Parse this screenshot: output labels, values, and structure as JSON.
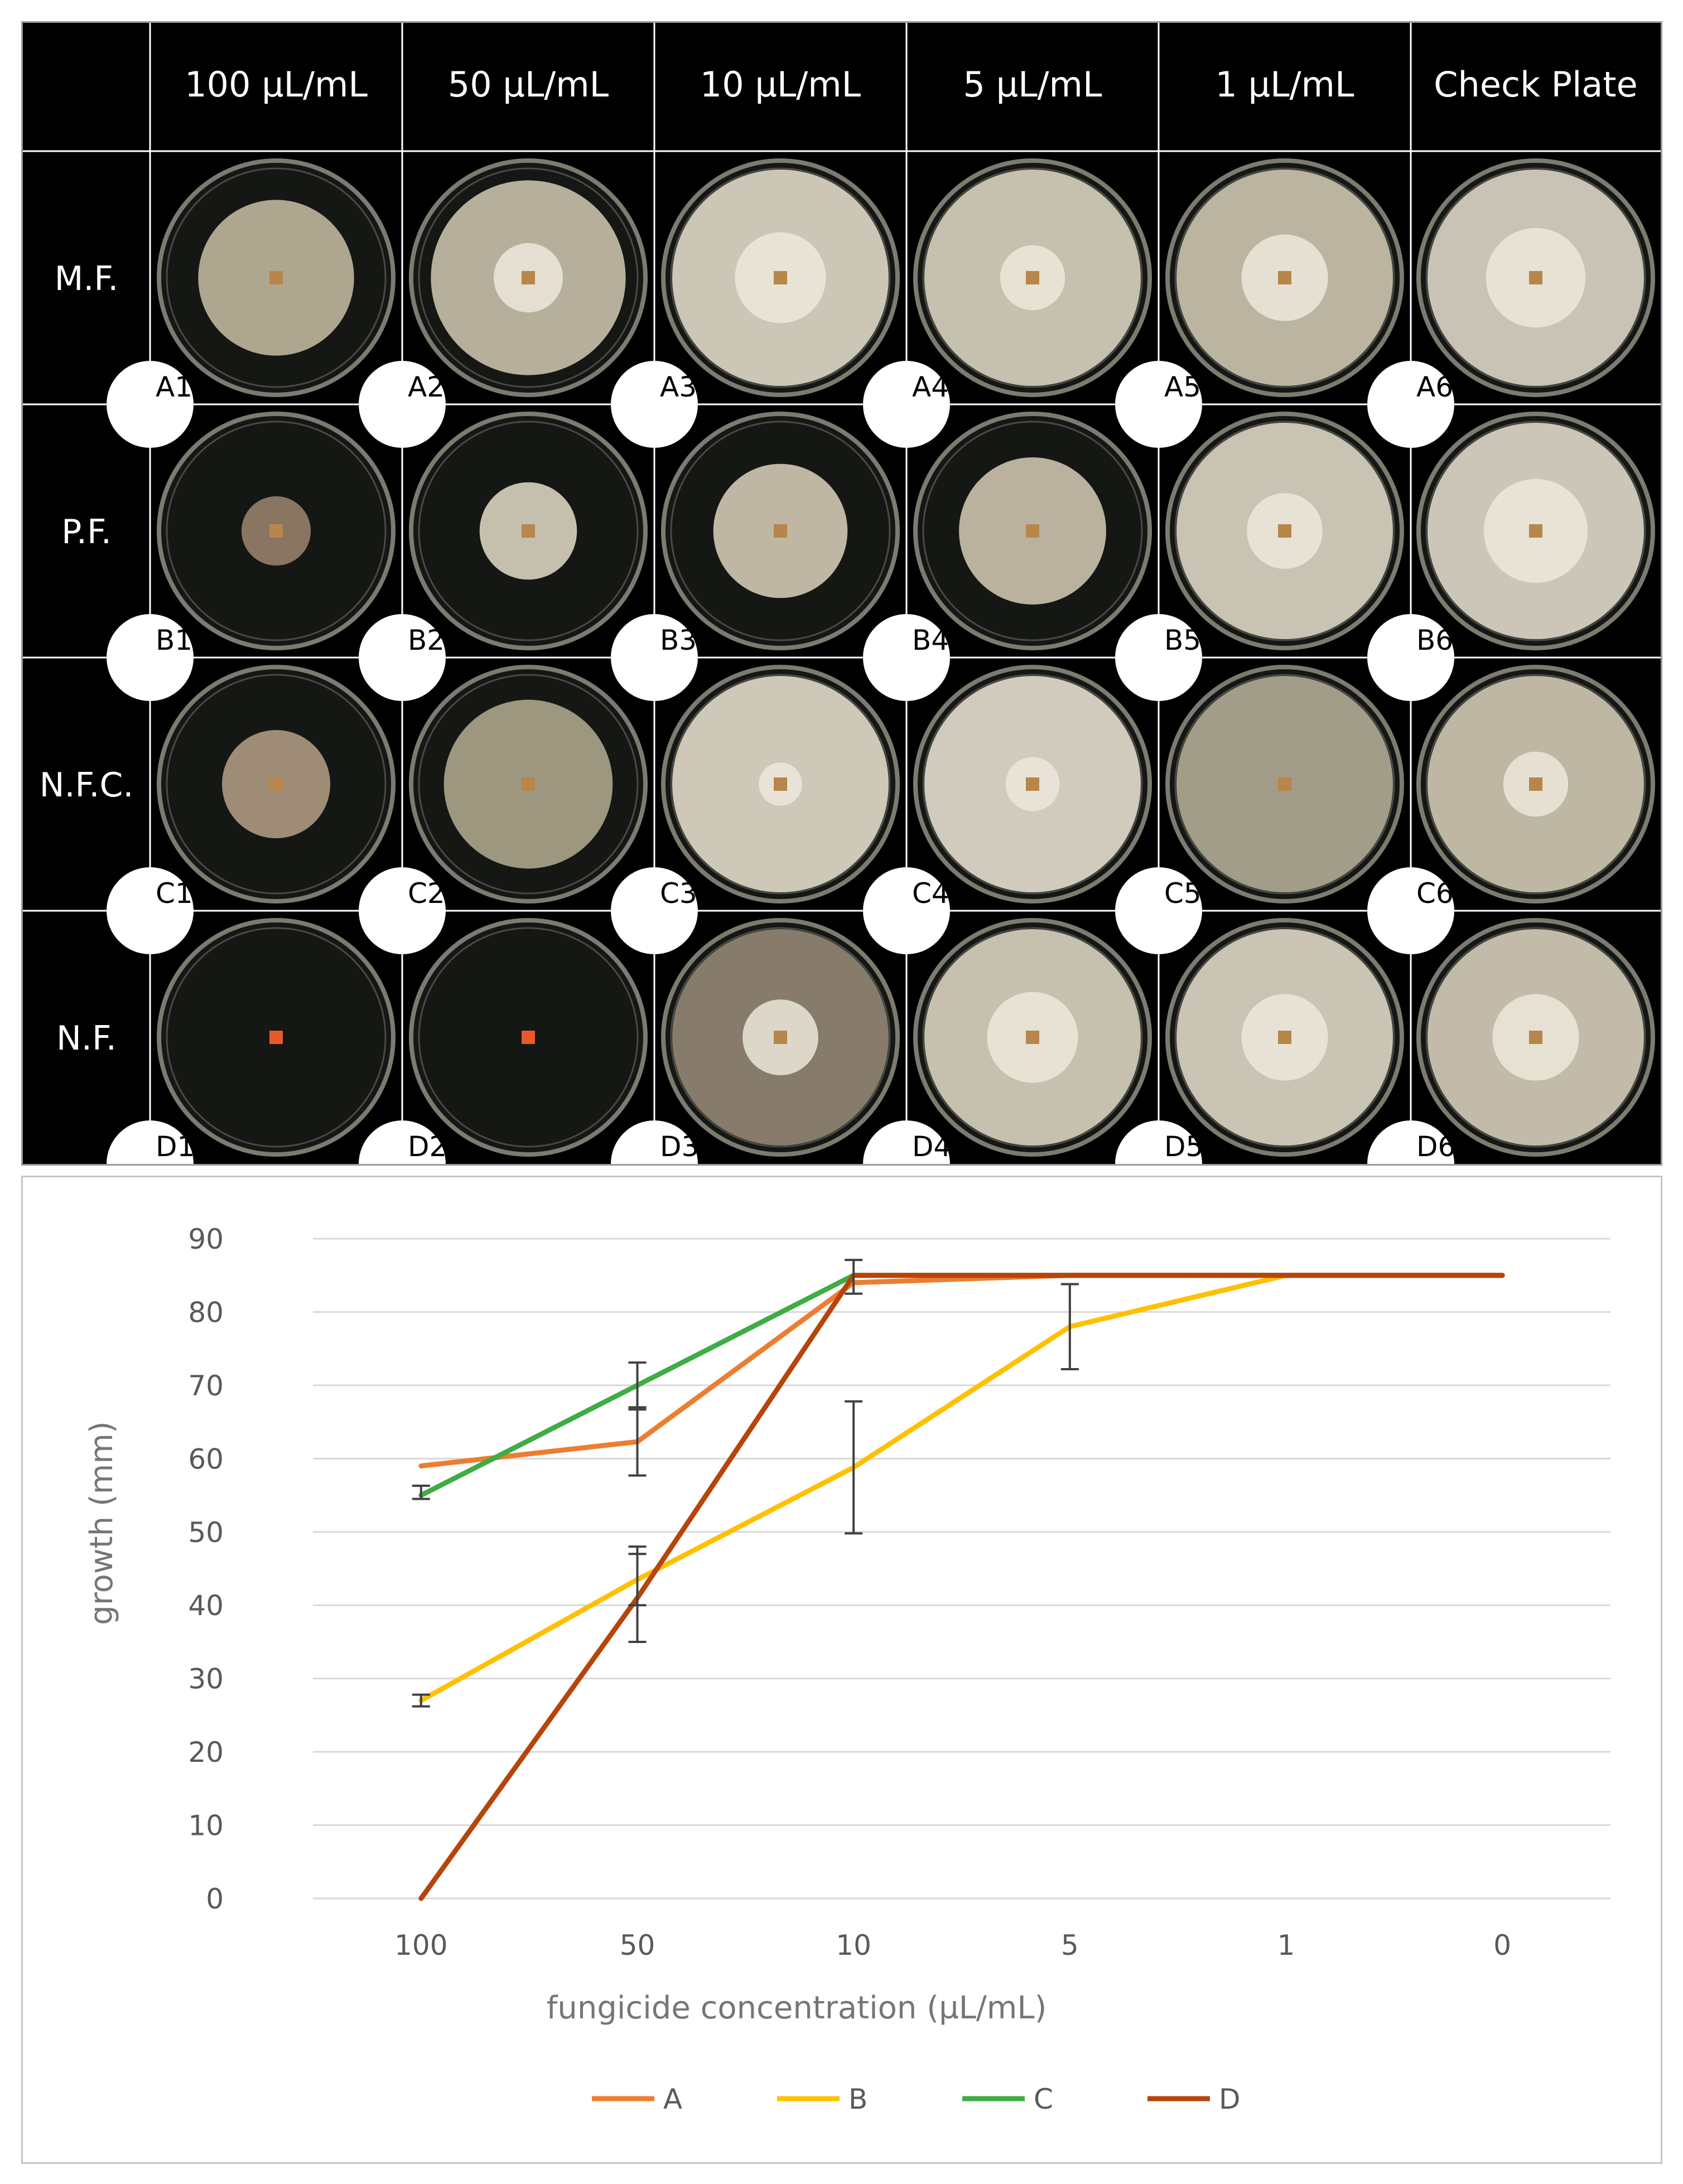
{
  "grid": {
    "columns": [
      "100 µL/mL",
      "50 µL/mL",
      "10 µL/mL",
      "5 µL/mL",
      "1 µL/mL",
      "Check Plate"
    ],
    "rows": [
      {
        "label": "M.F.",
        "plates": [
          "A1",
          "A2",
          "A3",
          "A4",
          "A5",
          "A6"
        ],
        "colony": [
          0.72,
          0.9,
          1.0,
          1.0,
          1.0,
          1.0
        ],
        "center": [
          0.0,
          0.32,
          0.42,
          0.3,
          0.4,
          0.46
        ],
        "tone": [
          "#b7ae97",
          "#bfb7a2",
          "#d6d0c0",
          "#d0c9b6",
          "#c4bda8",
          "#d2ccbd"
        ]
      },
      {
        "label": "P.F.",
        "plates": [
          "B1",
          "B2",
          "B3",
          "B4",
          "B5",
          "B6"
        ],
        "colony": [
          0.32,
          0.45,
          0.62,
          0.68,
          1.0,
          1.0
        ],
        "center": [
          0.0,
          0.0,
          0.0,
          0.0,
          0.35,
          0.48
        ],
        "tone": [
          "#8f7a66",
          "#cfc8b6",
          "#c8c0ab",
          "#c3bba5",
          "#d2ccbb",
          "#d6d0c2"
        ]
      },
      {
        "label": "N.F.C.",
        "plates": [
          "C1",
          "C2",
          "C3",
          "C4",
          "C5",
          "C6"
        ],
        "colony": [
          0.5,
          0.78,
          1.0,
          1.0,
          1.0,
          1.0
        ],
        "center": [
          0.0,
          0.0,
          0.2,
          0.25,
          0.0,
          0.3
        ],
        "tone": [
          "#a5927c",
          "#a49e86",
          "#d8d2c2",
          "#dbd5c6",
          "#a9a48f",
          "#c6c0ab"
        ]
      },
      {
        "label": "N.F.",
        "plates": [
          "D1",
          "D2",
          "D3",
          "D4",
          "D5",
          "D6"
        ],
        "colony": [
          0.0,
          0.0,
          1.0,
          1.0,
          1.0,
          1.0
        ],
        "center": [
          0.0,
          0.0,
          0.35,
          0.42,
          0.4,
          0.4
        ],
        "tone": [
          "#1e241f",
          "#1e241f",
          "#8d8170",
          "#d0c9b7",
          "#d3cdbd",
          "#cbc4b1"
        ]
      }
    ]
  },
  "chart_data": {
    "type": "line",
    "categories": [
      "100",
      "50",
      "10",
      "5",
      "1",
      "0"
    ],
    "xlabel": "fungicide concentration (µL/mL)",
    "ylabel": "growth (mm)",
    "ylim": [
      0,
      90
    ],
    "yticks": [
      "0",
      "10",
      "20",
      "30",
      "40",
      "50",
      "60",
      "70",
      "80",
      "90"
    ],
    "grid": true,
    "legend_position": "bottom",
    "series": [
      {
        "name": "A",
        "color": "#ed7d31",
        "values": [
          59,
          62.3,
          84,
          85,
          85,
          85
        ],
        "errors": [
          null,
          [
            57.7,
            66.7
          ],
          null,
          null,
          null,
          null
        ]
      },
      {
        "name": "B",
        "color": "#ffc000",
        "values": [
          27,
          43.5,
          58.8,
          78,
          85,
          85
        ],
        "errors": [
          [
            26.2,
            27.8
          ],
          [
            40,
            47
          ],
          [
            49.8,
            67.8
          ],
          [
            72.2,
            83.8
          ],
          null,
          null
        ]
      },
      {
        "name": "C",
        "color": "#3fac45",
        "values": [
          55,
          70,
          85,
          85,
          85,
          85
        ],
        "errors": [
          [
            54.5,
            56.3
          ],
          [
            67,
            73.1
          ],
          [
            82.5,
            87.1
          ],
          null,
          null,
          null
        ]
      },
      {
        "name": "D",
        "color": "#b7440a",
        "values": [
          0,
          41,
          85,
          85,
          85,
          85
        ],
        "errors": [
          null,
          [
            35,
            48
          ],
          null,
          null,
          null,
          null
        ]
      }
    ]
  }
}
